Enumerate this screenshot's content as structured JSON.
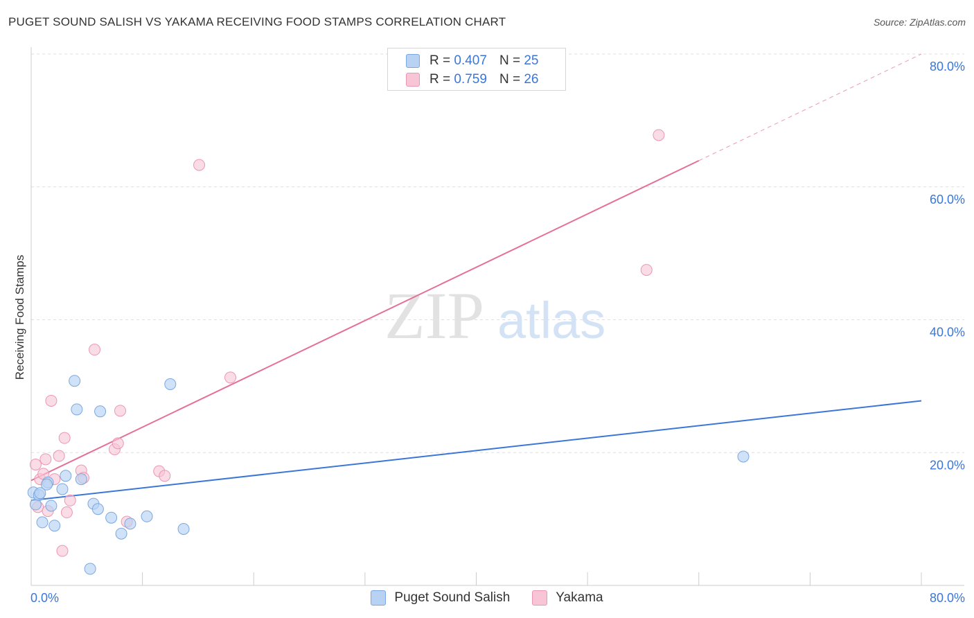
{
  "title": "PUGET SOUND SALISH VS YAKAMA RECEIVING FOOD STAMPS CORRELATION CHART",
  "source": "Source: ZipAtlas.com",
  "watermark": {
    "zip": "ZIP",
    "atlas": "atlas"
  },
  "legend": {
    "rows": [
      {
        "r_label": "R =",
        "r_value": "0.407",
        "n_label": "N =",
        "n_value": "25"
      },
      {
        "r_label": "R =",
        "r_value": "0.759",
        "n_label": "N =",
        "n_value": "26"
      }
    ]
  },
  "bottom_legend": [
    "Puget Sound Salish",
    "Yakama"
  ],
  "colors": {
    "blue_fill": "#b7d2f3",
    "blue_edge": "#7ba7e0",
    "blue_line": "#3a76d8",
    "pink_fill": "#f7c5d5",
    "pink_edge": "#eb96b1",
    "pink_line": "#e56f97",
    "grid": "#dddddd",
    "axis_text": "#3a76d8"
  },
  "chart_data": {
    "type": "scatter",
    "title": "PUGET SOUND SALISH VS YAKAMA RECEIVING FOOD STAMPS CORRELATION CHART",
    "xlabel": "",
    "ylabel": "Receiving Food Stamps",
    "xlim": [
      0,
      80
    ],
    "ylim": [
      0,
      80
    ],
    "x_tick_labels": [
      "0.0%",
      "80.0%"
    ],
    "y_ticks": [
      20,
      40,
      60,
      80
    ],
    "y_tick_labels": [
      "20.0%",
      "40.0%",
      "60.0%",
      "80.0%"
    ],
    "grid": true,
    "series": [
      {
        "name": "Puget Sound Salish",
        "R": 0.407,
        "N": 25,
        "points": [
          [
            0.2,
            14.0
          ],
          [
            0.4,
            12.2
          ],
          [
            0.7,
            13.6
          ],
          [
            1.0,
            9.5
          ],
          [
            1.5,
            15.5
          ],
          [
            1.8,
            12.0
          ],
          [
            2.1,
            9.0
          ],
          [
            2.8,
            14.5
          ],
          [
            3.1,
            16.5
          ],
          [
            3.9,
            30.8
          ],
          [
            4.1,
            26.5
          ],
          [
            4.5,
            16.0
          ],
          [
            5.6,
            12.3
          ],
          [
            6.0,
            11.5
          ],
          [
            6.2,
            26.2
          ],
          [
            7.2,
            10.2
          ],
          [
            8.1,
            7.8
          ],
          [
            8.9,
            9.3
          ],
          [
            10.4,
            10.4
          ],
          [
            12.5,
            30.3
          ],
          [
            13.7,
            8.5
          ],
          [
            5.3,
            2.5
          ],
          [
            1.4,
            15.2
          ],
          [
            0.8,
            13.9
          ],
          [
            64.0,
            19.4
          ]
        ],
        "trend": {
          "x": [
            0,
            80
          ],
          "y": [
            12.8,
            27.8
          ],
          "style": "solid"
        }
      },
      {
        "name": "Yakama",
        "R": 0.759,
        "N": 26,
        "points": [
          [
            0.4,
            18.2
          ],
          [
            0.6,
            11.8
          ],
          [
            0.8,
            16.0
          ],
          [
            1.1,
            16.8
          ],
          [
            1.3,
            19.0
          ],
          [
            1.5,
            11.2
          ],
          [
            1.8,
            27.8
          ],
          [
            2.1,
            16.0
          ],
          [
            2.5,
            19.5
          ],
          [
            3.0,
            22.2
          ],
          [
            3.2,
            11.0
          ],
          [
            3.5,
            12.8
          ],
          [
            2.8,
            5.2
          ],
          [
            4.5,
            17.3
          ],
          [
            4.7,
            16.2
          ],
          [
            5.7,
            35.5
          ],
          [
            7.5,
            20.5
          ],
          [
            7.8,
            21.4
          ],
          [
            8.0,
            26.3
          ],
          [
            8.6,
            9.6
          ],
          [
            11.5,
            17.2
          ],
          [
            12.0,
            16.5
          ],
          [
            15.1,
            63.3
          ],
          [
            17.9,
            31.3
          ],
          [
            55.3,
            47.5
          ],
          [
            56.4,
            67.8
          ]
        ],
        "trend": {
          "x": [
            0,
            80
          ],
          "y": [
            15.8,
            80.0
          ],
          "style": "solid-then-dashed",
          "solid_until_x": 60
        }
      }
    ]
  }
}
